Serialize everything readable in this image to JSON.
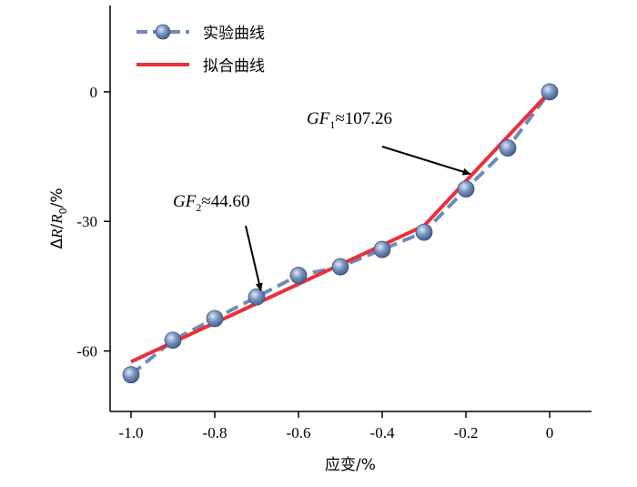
{
  "chart_data": {
    "type": "line",
    "xlabel": "应变/%",
    "ylabel": {
      "delta": "Δ",
      "r": "R",
      "slash": "/",
      "r0": "R",
      "sub0": "0",
      "unit": "/%"
    },
    "xlim": [
      -1.05,
      0.1
    ],
    "ylim": [
      -74,
      20
    ],
    "xticks": [
      -1.0,
      -0.8,
      -0.6,
      -0.4,
      -0.2,
      0
    ],
    "xtick_labels": [
      "-1.0",
      "-0.8",
      "-0.6",
      "-0.4",
      "-0.2",
      "0"
    ],
    "yticks": [
      0,
      -30,
      -60
    ],
    "ytick_labels": [
      "0",
      "-30",
      "-60"
    ],
    "legend_position": "top-left",
    "series": [
      {
        "name": "实验曲线",
        "style": "dashed-with-markers",
        "color": "#6f8bb8",
        "marker_color": "#5a77a8",
        "x": [
          -1.0,
          -0.9,
          -0.8,
          -0.7,
          -0.6,
          -0.5,
          -0.4,
          -0.3,
          -0.2,
          -0.1,
          0
        ],
        "y": [
          -65.5,
          -57.5,
          -52.5,
          -47.5,
          -42.5,
          -40.5,
          -36.5,
          -32.5,
          -22.5,
          -13,
          0
        ]
      },
      {
        "name": "拟合曲线",
        "style": "solid",
        "color": "#e8313a",
        "x": [
          -1.0,
          -0.3,
          -0.3,
          0
        ],
        "y": [
          -62.5,
          -31.0,
          -31.0,
          0
        ]
      }
    ],
    "annotations": [
      {
        "prefix": "GF",
        "sub": "1",
        "approx": "≈",
        "value": "107.26",
        "target_x": -0.19,
        "target_y": -19
      },
      {
        "prefix": "GF",
        "sub": "2",
        "approx": "≈",
        "value": "44.60",
        "target_x": -0.69,
        "target_y": -46
      }
    ]
  }
}
